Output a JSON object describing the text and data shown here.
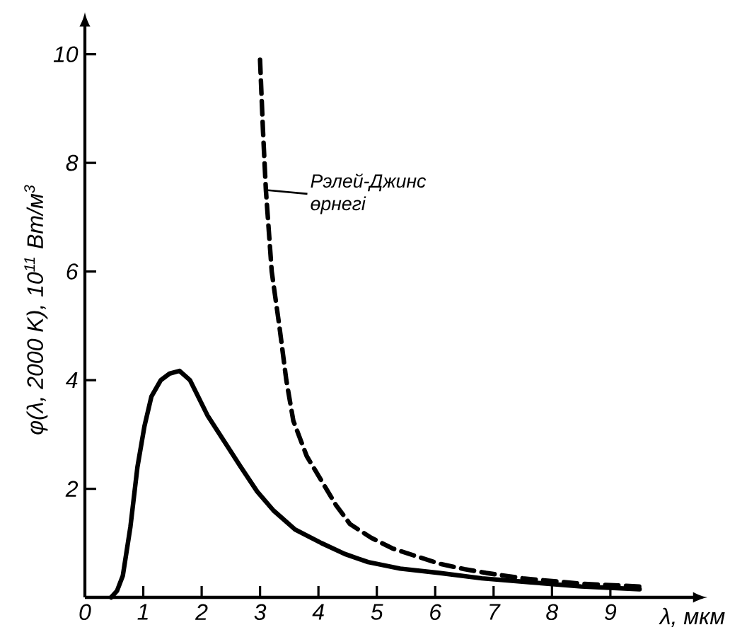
{
  "chart_data": {
    "type": "line",
    "xlabel": "λ, мкм",
    "ylabel": "φ(λ, 2000 K), 10$^{11}$ Вт/м$^{3}$",
    "xlim": [
      0,
      10.5
    ],
    "ylim": [
      0,
      10.6
    ],
    "xticks": [
      0,
      1,
      2,
      3,
      4,
      5,
      6,
      7,
      8,
      9
    ],
    "yticks": [
      {
        "value": 0,
        "label": null
      },
      2,
      4,
      6,
      8,
      10
    ],
    "grid": false,
    "marker": "none",
    "series": [
      {
        "color": "#000000",
        "line_style": "solid",
        "x": [
          0.45,
          0.55,
          0.65,
          0.78,
          0.9,
          1.02,
          1.14,
          1.3,
          1.45,
          1.62,
          1.8,
          2.1,
          2.4,
          2.67,
          2.95,
          3.23,
          3.6,
          4.05,
          4.45,
          4.85,
          5.4,
          6.07,
          6.8,
          7.6,
          8.5,
          9.5
        ],
        "values": [
          0,
          0.12,
          0.4,
          1.3,
          2.4,
          3.15,
          3.7,
          4.0,
          4.12,
          4.17,
          4.0,
          3.35,
          2.85,
          2.4,
          1.95,
          1.6,
          1.25,
          1.0,
          0.8,
          0.65,
          0.53,
          0.45,
          0.35,
          0.28,
          0.2,
          0.15
        ]
      },
      {
        "color": "#000000",
        "line_style": "dashed",
        "x": [
          3.0,
          3.05,
          3.1,
          3.2,
          3.33,
          3.45,
          3.57,
          3.8,
          4.05,
          4.3,
          4.54,
          4.9,
          5.27,
          5.7,
          6.07,
          6.5,
          6.87,
          7.5,
          8.5,
          9.5
        ],
        "values": [
          9.9,
          8.6,
          7.5,
          6.0,
          5.0,
          4.0,
          3.25,
          2.6,
          2.15,
          1.7,
          1.35,
          1.1,
          0.9,
          0.75,
          0.62,
          0.52,
          0.45,
          0.35,
          0.25,
          0.2
        ]
      }
    ],
    "annotations": [
      {
        "text": "Рэлей-Джинс өрнегі",
        "x": 3.1,
        "y": 7.5
      }
    ]
  }
}
